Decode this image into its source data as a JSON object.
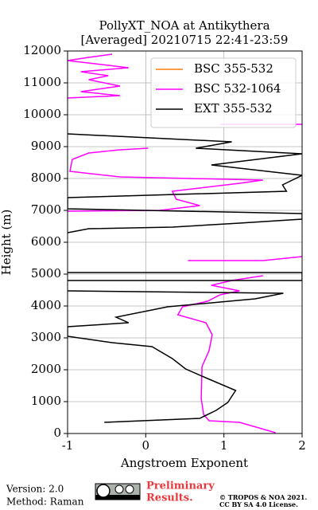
{
  "chart_data": {
    "type": "line",
    "title": "PollyXT_NOA at Antikythera",
    "subtitle": "[Averaged] 20210715 22:41-23:59",
    "xlabel": "Angstroem Exponent",
    "ylabel": "Height (m)",
    "xlim": [
      -1,
      2
    ],
    "xticks": [
      -1,
      0,
      1,
      2
    ],
    "ylim": [
      0,
      12000
    ],
    "yticks": [
      0,
      1000,
      2000,
      3000,
      4000,
      5000,
      6000,
      7000,
      8000,
      9000,
      10000,
      11000,
      12000
    ],
    "grid": true,
    "legend": "upper right",
    "series": [
      {
        "name": "BSC 355-532",
        "color": "#ff7f0e",
        "heights": [],
        "values": []
      },
      {
        "name": "BSC 532-1064",
        "color": "#ff00ff",
        "heights": [
          25,
          350,
          400,
          600,
          1100,
          2100,
          2600,
          3100,
          3475,
          3725,
          3975,
          4150,
          4350,
          4475,
          4650,
          4800,
          4950,
          null,
          5425,
          5425,
          5550,
          null,
          6975,
          7000,
          7150,
          7350,
          7600,
          7700,
          7850,
          7950,
          8050,
          8225,
          8350,
          8600,
          8800,
          8900,
          8950,
          null,
          9700,
          9700,
          null,
          10525,
          10600,
          10725,
          10900,
          11100,
          11225,
          11350,
          11475,
          11700,
          11800,
          11900
        ],
        "values": [
          1.66,
          1.2,
          0.81,
          0.74,
          0.71,
          0.72,
          0.81,
          0.85,
          0.77,
          0.41,
          0.47,
          0.79,
          0.95,
          1.2,
          0.84,
          1.1,
          1.5,
          null,
          0.54,
          1.5,
          2.0,
          null,
          -1,
          0.18,
          0.69,
          0.39,
          0.34,
          0.69,
          1.2,
          1.5,
          -0.33,
          -0.97,
          -0.96,
          -0.94,
          -0.73,
          -0.33,
          0.03,
          null,
          0.95,
          2.0,
          null,
          -1,
          -0.33,
          -0.83,
          -0.33,
          -0.73,
          -0.48,
          -0.83,
          -0.22,
          -1,
          -0.73,
          -0.43
        ]
      },
      {
        "name": "EXT 355-532",
        "color": "#000000",
        "heights": [
          350,
          475,
          725,
          975,
          1350,
          1725,
          2025,
          2350,
          2725,
          2850,
          3050,
          3350,
          3475,
          3650,
          3975,
          4225,
          4400,
          4475,
          null,
          4800,
          4800,
          5050,
          5050,
          null,
          6300,
          6425,
          6475,
          6600,
          6725,
          6900,
          7050,
          7400,
          7600,
          7800,
          8100,
          8425,
          8775,
          8950,
          9150,
          9400
        ],
        "values": [
          -0.53,
          0.69,
          0.9,
          1.05,
          1.15,
          0.79,
          0.51,
          0.34,
          0.08,
          -0.43,
          -1,
          -1,
          -0.22,
          -0.38,
          0.28,
          1.4,
          1.76,
          -1,
          null,
          -1,
          2.0,
          2.0,
          -1,
          null,
          -1,
          -0.73,
          0.34,
          1.2,
          2.0,
          2.0,
          -1,
          -1,
          1.8,
          1.75,
          2.0,
          0.84,
          2.0,
          0.64,
          1.1,
          -1
        ]
      }
    ]
  },
  "footer": {
    "version": "Version: 2.0",
    "method": "Method: Raman",
    "preliminary": [
      "Preliminary",
      "Results."
    ],
    "copyright": [
      "© TROPOS & NOA 2021.",
      "CC BY SA 4.0 License."
    ]
  }
}
